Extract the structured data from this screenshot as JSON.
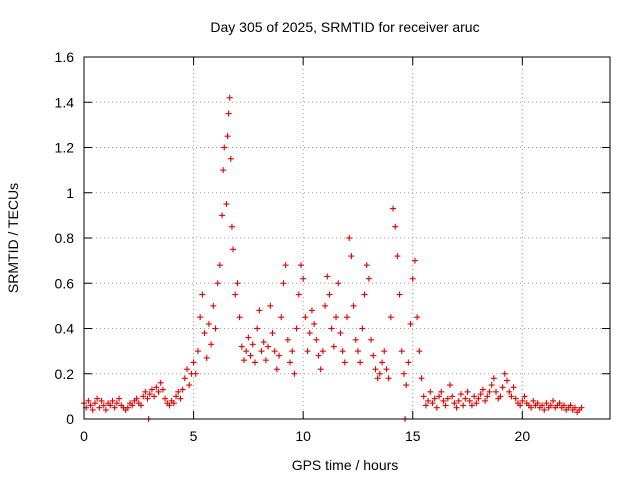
{
  "chart_data": {
    "type": "scatter",
    "title": "Day 305 of 2025, SRMTID for receiver aruc",
    "xlabel": "GPS time / hours",
    "ylabel": "SRMTID / TECUs",
    "xlim": [
      0,
      24
    ],
    "ylim": [
      0,
      1.6
    ],
    "xticks": [
      0,
      5,
      10,
      15,
      20
    ],
    "xtick_labels": [
      "0",
      "5",
      "10",
      "15",
      "20"
    ],
    "yticks": [
      0,
      0.2,
      0.4,
      0.6,
      0.8,
      1.0,
      1.2,
      1.4,
      1.6
    ],
    "ytick_labels": [
      "0",
      "0.2",
      "0.4",
      "0.6",
      "0.8",
      "1",
      "1.2",
      "1.4",
      "1.6"
    ],
    "grid": true,
    "marker": "plus",
    "marker_color": "#e00000",
    "series": [
      {
        "name": "SRMTID",
        "points": [
          [
            0.0,
            0.07
          ],
          [
            0.1,
            0.05
          ],
          [
            0.2,
            0.08
          ],
          [
            0.3,
            0.06
          ],
          [
            0.4,
            0.04
          ],
          [
            0.5,
            0.07
          ],
          [
            0.6,
            0.09
          ],
          [
            0.7,
            0.05
          ],
          [
            0.8,
            0.08
          ],
          [
            0.9,
            0.06
          ],
          [
            1.0,
            0.04
          ],
          [
            1.1,
            0.07
          ],
          [
            1.2,
            0.06
          ],
          [
            1.3,
            0.08
          ],
          [
            1.4,
            0.05
          ],
          [
            1.5,
            0.07
          ],
          [
            1.6,
            0.09
          ],
          [
            1.7,
            0.06
          ],
          [
            1.8,
            0.05
          ],
          [
            1.9,
            0.04
          ],
          [
            2.0,
            0.05
          ],
          [
            2.1,
            0.07
          ],
          [
            2.2,
            0.06
          ],
          [
            2.3,
            0.08
          ],
          [
            2.4,
            0.09
          ],
          [
            2.5,
            0.07
          ],
          [
            2.6,
            0.06
          ],
          [
            2.7,
            0.1
          ],
          [
            2.8,
            0.12
          ],
          [
            2.9,
            0.09
          ],
          [
            3.0,
            0.11
          ],
          [
            3.1,
            0.13
          ],
          [
            3.2,
            0.1
          ],
          [
            3.3,
            0.14
          ],
          [
            3.4,
            0.12
          ],
          [
            3.5,
            0.16
          ],
          [
            3.6,
            0.13
          ],
          [
            3.7,
            0.09
          ],
          [
            3.8,
            0.07
          ],
          [
            3.9,
            0.06
          ],
          [
            4.0,
            0.08
          ],
          [
            4.1,
            0.07
          ],
          [
            4.2,
            0.1
          ],
          [
            4.3,
            0.12
          ],
          [
            4.4,
            0.09
          ],
          [
            4.5,
            0.13
          ],
          [
            4.6,
            0.18
          ],
          [
            4.7,
            0.22
          ],
          [
            4.8,
            0.15
          ],
          [
            4.9,
            0.2
          ],
          [
            5.0,
            0.25
          ],
          [
            5.1,
            0.2
          ],
          [
            5.2,
            0.3
          ],
          [
            5.3,
            0.45
          ],
          [
            5.4,
            0.55
          ],
          [
            5.5,
            0.38
          ],
          [
            5.6,
            0.27
          ],
          [
            5.7,
            0.42
          ],
          [
            5.8,
            0.33
          ],
          [
            5.9,
            0.5
          ],
          [
            6.0,
            0.4
          ],
          [
            6.1,
            0.6
          ],
          [
            6.2,
            0.68
          ],
          [
            6.3,
            0.9
          ],
          [
            6.35,
            1.1
          ],
          [
            6.4,
            1.2
          ],
          [
            6.5,
            0.95
          ],
          [
            6.55,
            1.25
          ],
          [
            6.6,
            1.35
          ],
          [
            6.65,
            1.42
          ],
          [
            6.7,
            1.15
          ],
          [
            6.75,
            0.85
          ],
          [
            6.8,
            0.75
          ],
          [
            6.9,
            0.55
          ],
          [
            7.0,
            0.6
          ],
          [
            7.1,
            0.45
          ],
          [
            7.2,
            0.32
          ],
          [
            7.3,
            0.26
          ],
          [
            7.4,
            0.3
          ],
          [
            7.5,
            0.36
          ],
          [
            7.6,
            0.28
          ],
          [
            7.7,
            0.33
          ],
          [
            7.8,
            0.25
          ],
          [
            7.9,
            0.4
          ],
          [
            8.0,
            0.48
          ],
          [
            8.1,
            0.3
          ],
          [
            8.2,
            0.34
          ],
          [
            8.3,
            0.26
          ],
          [
            8.4,
            0.32
          ],
          [
            8.5,
            0.5
          ],
          [
            8.6,
            0.38
          ],
          [
            8.7,
            0.3
          ],
          [
            8.8,
            0.22
          ],
          [
            8.9,
            0.28
          ],
          [
            9.0,
            0.45
          ],
          [
            9.1,
            0.6
          ],
          [
            9.2,
            0.68
          ],
          [
            9.3,
            0.35
          ],
          [
            9.4,
            0.25
          ],
          [
            9.5,
            0.3
          ],
          [
            9.6,
            0.2
          ],
          [
            9.7,
            0.4
          ],
          [
            9.8,
            0.55
          ],
          [
            9.9,
            0.68
          ],
          [
            10.0,
            0.62
          ],
          [
            10.1,
            0.45
          ],
          [
            10.2,
            0.3
          ],
          [
            10.3,
            0.38
          ],
          [
            10.4,
            0.48
          ],
          [
            10.5,
            0.42
          ],
          [
            10.6,
            0.35
          ],
          [
            10.7,
            0.28
          ],
          [
            10.8,
            0.22
          ],
          [
            10.9,
            0.3
          ],
          [
            11.0,
            0.5
          ],
          [
            11.1,
            0.63
          ],
          [
            11.2,
            0.55
          ],
          [
            11.3,
            0.4
          ],
          [
            11.4,
            0.32
          ],
          [
            11.5,
            0.45
          ],
          [
            11.6,
            0.6
          ],
          [
            11.7,
            0.38
          ],
          [
            11.8,
            0.3
          ],
          [
            11.9,
            0.25
          ],
          [
            12.0,
            0.45
          ],
          [
            12.1,
            0.8
          ],
          [
            12.2,
            0.72
          ],
          [
            12.3,
            0.5
          ],
          [
            12.4,
            0.35
          ],
          [
            12.5,
            0.3
          ],
          [
            12.6,
            0.25
          ],
          [
            12.7,
            0.4
          ],
          [
            12.8,
            0.55
          ],
          [
            12.9,
            0.68
          ],
          [
            13.0,
            0.62
          ],
          [
            13.1,
            0.35
          ],
          [
            13.2,
            0.28
          ],
          [
            13.3,
            0.22
          ],
          [
            13.4,
            0.18
          ],
          [
            13.5,
            0.2
          ],
          [
            13.6,
            0.25
          ],
          [
            13.7,
            0.3
          ],
          [
            13.8,
            0.22
          ],
          [
            13.9,
            0.18
          ],
          [
            14.0,
            0.45
          ],
          [
            14.1,
            0.93
          ],
          [
            14.2,
            0.85
          ],
          [
            14.3,
            0.72
          ],
          [
            14.4,
            0.55
          ],
          [
            14.5,
            0.3
          ],
          [
            14.6,
            0.2
          ],
          [
            14.7,
            0.15
          ],
          [
            14.8,
            0.25
          ],
          [
            14.9,
            0.42
          ],
          [
            15.0,
            0.62
          ],
          [
            15.1,
            0.7
          ],
          [
            15.2,
            0.45
          ],
          [
            15.3,
            0.3
          ],
          [
            15.4,
            0.18
          ],
          [
            15.5,
            0.1
          ],
          [
            15.6,
            0.06
          ],
          [
            15.7,
            0.08
          ],
          [
            15.8,
            0.12
          ],
          [
            15.9,
            0.07
          ],
          [
            16.0,
            0.09
          ],
          [
            16.1,
            0.05
          ],
          [
            16.2,
            0.1
          ],
          [
            16.3,
            0.12
          ],
          [
            16.4,
            0.08
          ],
          [
            16.5,
            0.06
          ],
          [
            16.6,
            0.09
          ],
          [
            16.7,
            0.15
          ],
          [
            16.8,
            0.1
          ],
          [
            16.9,
            0.07
          ],
          [
            17.0,
            0.05
          ],
          [
            17.1,
            0.08
          ],
          [
            17.2,
            0.11
          ],
          [
            17.3,
            0.06
          ],
          [
            17.4,
            0.09
          ],
          [
            17.5,
            0.12
          ],
          [
            17.6,
            0.08
          ],
          [
            17.7,
            0.06
          ],
          [
            17.8,
            0.1
          ],
          [
            17.9,
            0.07
          ],
          [
            18.0,
            0.09
          ],
          [
            18.1,
            0.11
          ],
          [
            18.2,
            0.13
          ],
          [
            18.3,
            0.08
          ],
          [
            18.4,
            0.1
          ],
          [
            18.5,
            0.12
          ],
          [
            18.6,
            0.15
          ],
          [
            18.7,
            0.18
          ],
          [
            18.8,
            0.12
          ],
          [
            18.9,
            0.09
          ],
          [
            19.0,
            0.1
          ],
          [
            19.1,
            0.14
          ],
          [
            19.2,
            0.2
          ],
          [
            19.3,
            0.17
          ],
          [
            19.4,
            0.12
          ],
          [
            19.5,
            0.1
          ],
          [
            19.6,
            0.14
          ],
          [
            19.7,
            0.09
          ],
          [
            19.8,
            0.07
          ],
          [
            19.9,
            0.06
          ],
          [
            20.0,
            0.08
          ],
          [
            20.1,
            0.1
          ],
          [
            20.2,
            0.07
          ],
          [
            20.3,
            0.06
          ],
          [
            20.4,
            0.05
          ],
          [
            20.5,
            0.08
          ],
          [
            20.6,
            0.06
          ],
          [
            20.7,
            0.07
          ],
          [
            20.8,
            0.05
          ],
          [
            20.9,
            0.06
          ],
          [
            21.0,
            0.04
          ],
          [
            21.1,
            0.07
          ],
          [
            21.2,
            0.05
          ],
          [
            21.3,
            0.06
          ],
          [
            21.4,
            0.08
          ],
          [
            21.5,
            0.05
          ],
          [
            21.6,
            0.06
          ],
          [
            21.7,
            0.07
          ],
          [
            21.8,
            0.05
          ],
          [
            21.9,
            0.06
          ],
          [
            22.0,
            0.04
          ],
          [
            22.1,
            0.05
          ],
          [
            22.2,
            0.06
          ],
          [
            22.3,
            0.04
          ],
          [
            22.4,
            0.05
          ],
          [
            22.5,
            0.03
          ],
          [
            22.6,
            0.04
          ],
          [
            22.7,
            0.05
          ],
          [
            2.95,
            0.0
          ],
          [
            14.65,
            0.0
          ]
        ]
      }
    ]
  }
}
